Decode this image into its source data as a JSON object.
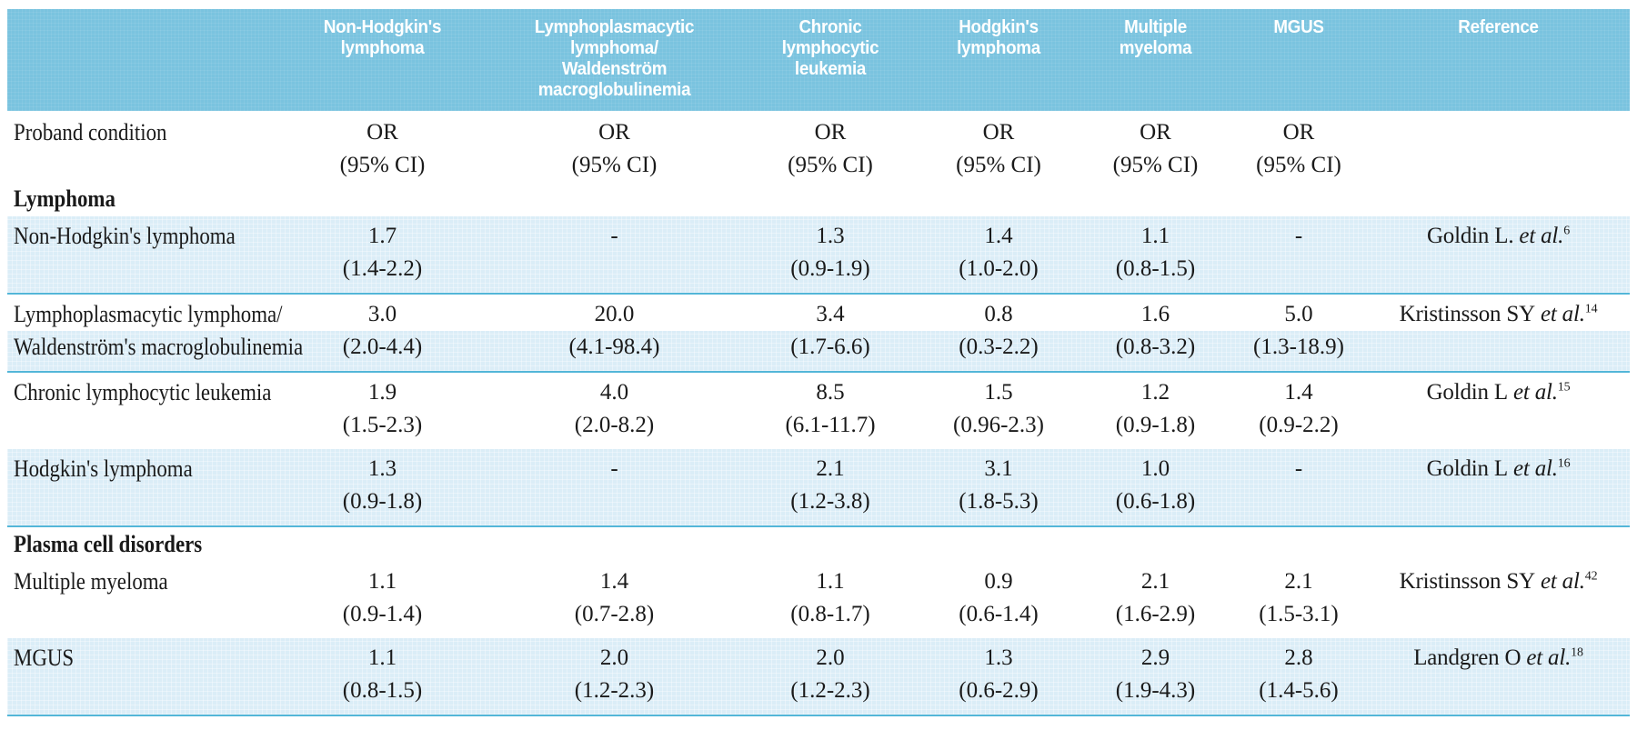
{
  "colors": {
    "header_bg": "#7AC3DF",
    "stripe_bg": "#DBEDF7",
    "divider": "#53B6D8",
    "header_text": "#FFFFFF",
    "body_text": "#1A1A1A"
  },
  "header": {
    "columns": [
      "Non-Hodgkin's\nlymphoma",
      "Lymphoplasmacytic\nlymphoma/\nWaldenström\nmacroglobulinemia",
      "Chronic\nlymphocytic\nleukemia",
      "Hodgkin's\nlymphoma",
      "Multiple\nmyeloma",
      "MGUS",
      "Reference"
    ]
  },
  "proband": {
    "label": "Proband condition",
    "or": "OR",
    "ci": "(95% CI)"
  },
  "sections": {
    "lymphoma": "Lymphoma",
    "plasma": "Plasma cell disorders"
  },
  "rows": [
    {
      "label1": "Non-Hodgkin's lymphoma",
      "label2": "",
      "cells": [
        {
          "or": "1.7",
          "ci": "(1.4-2.2)"
        },
        {
          "or": "-",
          "ci": ""
        },
        {
          "or": "1.3",
          "ci": "(0.9-1.9)"
        },
        {
          "or": "1.4",
          "ci": "(1.0-2.0)"
        },
        {
          "or": "1.1",
          "ci": "(0.8-1.5)"
        },
        {
          "or": "-",
          "ci": ""
        }
      ],
      "ref": {
        "name": "Goldin L.",
        "etal": " et al.",
        "sup": "6"
      }
    },
    {
      "label1": "Lymphoplasmacytic lymphoma/",
      "label2": "Waldenström's macroglobulinemia",
      "cells": [
        {
          "or": "3.0",
          "ci": "(2.0-4.4)"
        },
        {
          "or": "20.0",
          "ci": "(4.1-98.4)"
        },
        {
          "or": "3.4",
          "ci": "(1.7-6.6)"
        },
        {
          "or": "0.8",
          "ci": "(0.3-2.2)"
        },
        {
          "or": "1.6",
          "ci": "(0.8-3.2)"
        },
        {
          "or": "5.0",
          "ci": "(1.3-18.9)"
        }
      ],
      "ref": {
        "name": "Kristinsson SY",
        "etal": " et al.",
        "sup": "14"
      }
    },
    {
      "label1": "Chronic lymphocytic leukemia",
      "label2": "",
      "cells": [
        {
          "or": "1.9",
          "ci": "(1.5-2.3)"
        },
        {
          "or": "4.0",
          "ci": "(2.0-8.2)"
        },
        {
          "or": "8.5",
          "ci": "(6.1-11.7)"
        },
        {
          "or": "1.5",
          "ci": "(0.96-2.3)"
        },
        {
          "or": "1.2",
          "ci": "(0.9-1.8)"
        },
        {
          "or": "1.4",
          "ci": "(0.9-2.2)"
        }
      ],
      "ref": {
        "name": "Goldin L",
        "etal": " et al.",
        "sup": "15"
      }
    },
    {
      "label1": "Hodgkin's lymphoma",
      "label2": "",
      "cells": [
        {
          "or": "1.3",
          "ci": "(0.9-1.8)"
        },
        {
          "or": "-",
          "ci": ""
        },
        {
          "or": "2.1",
          "ci": "(1.2-3.8)"
        },
        {
          "or": "3.1",
          "ci": "(1.8-5.3)"
        },
        {
          "or": "1.0",
          "ci": "(0.6-1.8)"
        },
        {
          "or": "-",
          "ci": ""
        }
      ],
      "ref": {
        "name": "Goldin L",
        "etal": " et al.",
        "sup": "16"
      }
    },
    {
      "label1": "Multiple myeloma",
      "label2": "",
      "cells": [
        {
          "or": "1.1",
          "ci": "(0.9-1.4)"
        },
        {
          "or": "1.4",
          "ci": "(0.7-2.8)"
        },
        {
          "or": "1.1",
          "ci": "(0.8-1.7)"
        },
        {
          "or": "0.9",
          "ci": "(0.6-1.4)"
        },
        {
          "or": "2.1",
          "ci": "(1.6-2.9)"
        },
        {
          "or": "2.1",
          "ci": "(1.5-3.1)"
        }
      ],
      "ref": {
        "name": "Kristinsson SY",
        "etal": " et al.",
        "sup": "42"
      }
    },
    {
      "label1": "MGUS",
      "label2": "",
      "cells": [
        {
          "or": "1.1",
          "ci": "(0.8-1.5)"
        },
        {
          "or": "2.0",
          "ci": "(1.2-2.3)"
        },
        {
          "or": "2.0",
          "ci": "(1.2-2.3)"
        },
        {
          "or": "1.3",
          "ci": "(0.6-2.9)"
        },
        {
          "or": "2.9",
          "ci": "(1.9-4.3)"
        },
        {
          "or": "2.8",
          "ci": "(1.4-5.6)"
        }
      ],
      "ref": {
        "name": "Landgren O",
        "etal": " et al.",
        "sup": "18"
      }
    }
  ]
}
